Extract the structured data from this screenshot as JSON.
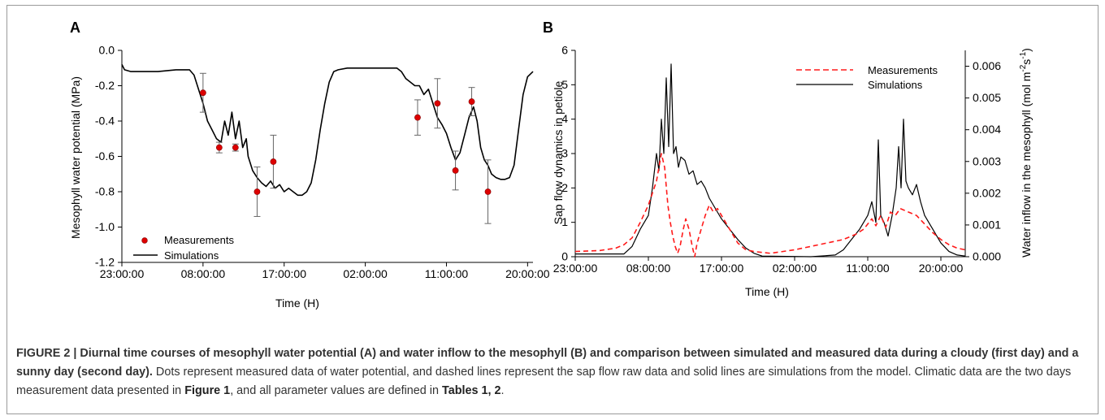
{
  "chart_data": [
    {
      "type": "scatter+line",
      "panel": "A",
      "xlabel": "Time (H)",
      "ylabel": "Mesophyll water potential (MPa)",
      "xlim": [
        23,
        68.6
      ],
      "ylim": [
        -1.2,
        0.0
      ],
      "xticks": [
        23,
        32,
        41,
        50,
        59,
        68
      ],
      "xtick_labels": [
        "23:00:00",
        "08:00:00",
        "17:00:00",
        "02:00:00",
        "11:00:00",
        "20:00:00"
      ],
      "yticks": [
        0.0,
        -0.2,
        -0.4,
        -0.6,
        -0.8,
        -1.0,
        -1.2
      ],
      "ytick_labels": [
        "0.0",
        "-0.2",
        "-0.4",
        "-0.6",
        "-0.8",
        "-1.0",
        "-1.2"
      ],
      "legend_position": "bottom-left",
      "series": [
        {
          "name": "Measurements",
          "kind": "points",
          "color": "#dd0000",
          "points": [
            {
              "x": 32.0,
              "y": -0.24,
              "err": 0.11
            },
            {
              "x": 33.8,
              "y": -0.55,
              "err": 0.03
            },
            {
              "x": 35.6,
              "y": -0.55,
              "err": 0.02
            },
            {
              "x": 38.0,
              "y": -0.8,
              "err": 0.14
            },
            {
              "x": 39.8,
              "y": -0.63,
              "err": 0.15
            },
            {
              "x": 55.8,
              "y": -0.38,
              "err": 0.1
            },
            {
              "x": 58.0,
              "y": -0.3,
              "err": 0.14
            },
            {
              "x": 60.0,
              "y": -0.68,
              "err": 0.11
            },
            {
              "x": 61.8,
              "y": -0.29,
              "err": 0.08
            },
            {
              "x": 63.6,
              "y": -0.8,
              "err": 0.18
            }
          ]
        },
        {
          "name": "Simulations",
          "kind": "line",
          "color": "#000000",
          "points": [
            [
              23.0,
              -0.08
            ],
            [
              23.3,
              -0.11
            ],
            [
              24.0,
              -0.12
            ],
            [
              27.0,
              -0.12
            ],
            [
              29.0,
              -0.11
            ],
            [
              30.5,
              -0.11
            ],
            [
              31.0,
              -0.14
            ],
            [
              31.5,
              -0.22
            ],
            [
              32.0,
              -0.3
            ],
            [
              32.5,
              -0.4
            ],
            [
              33.0,
              -0.45
            ],
            [
              33.5,
              -0.5
            ],
            [
              34.0,
              -0.52
            ],
            [
              34.4,
              -0.4
            ],
            [
              34.8,
              -0.48
            ],
            [
              35.2,
              -0.35
            ],
            [
              35.6,
              -0.5
            ],
            [
              36.0,
              -0.4
            ],
            [
              36.4,
              -0.55
            ],
            [
              36.8,
              -0.5
            ],
            [
              37.0,
              -0.6
            ],
            [
              37.5,
              -0.68
            ],
            [
              38.0,
              -0.72
            ],
            [
              38.5,
              -0.75
            ],
            [
              39.0,
              -0.77
            ],
            [
              39.5,
              -0.74
            ],
            [
              40.0,
              -0.78
            ],
            [
              40.5,
              -0.76
            ],
            [
              41.0,
              -0.8
            ],
            [
              41.5,
              -0.78
            ],
            [
              42.0,
              -0.8
            ],
            [
              42.5,
              -0.82
            ],
            [
              43.0,
              -0.82
            ],
            [
              43.5,
              -0.8
            ],
            [
              44.0,
              -0.75
            ],
            [
              44.5,
              -0.62
            ],
            [
              45.0,
              -0.45
            ],
            [
              45.5,
              -0.3
            ],
            [
              46.0,
              -0.18
            ],
            [
              46.5,
              -0.12
            ],
            [
              47.0,
              -0.11
            ],
            [
              48.0,
              -0.1
            ],
            [
              50.0,
              -0.1
            ],
            [
              52.0,
              -0.1
            ],
            [
              53.5,
              -0.1
            ],
            [
              54.0,
              -0.12
            ],
            [
              54.5,
              -0.16
            ],
            [
              55.0,
              -0.18
            ],
            [
              55.5,
              -0.2
            ],
            [
              56.0,
              -0.2
            ],
            [
              56.5,
              -0.25
            ],
            [
              57.0,
              -0.22
            ],
            [
              57.5,
              -0.3
            ],
            [
              58.0,
              -0.38
            ],
            [
              58.5,
              -0.42
            ],
            [
              59.0,
              -0.47
            ],
            [
              59.5,
              -0.55
            ],
            [
              60.0,
              -0.62
            ],
            [
              60.5,
              -0.58
            ],
            [
              61.0,
              -0.48
            ],
            [
              61.5,
              -0.38
            ],
            [
              62.0,
              -0.32
            ],
            [
              62.4,
              -0.4
            ],
            [
              62.8,
              -0.55
            ],
            [
              63.2,
              -0.62
            ],
            [
              63.6,
              -0.65
            ],
            [
              64.0,
              -0.7
            ],
            [
              64.5,
              -0.72
            ],
            [
              65.0,
              -0.73
            ],
            [
              65.5,
              -0.73
            ],
            [
              66.0,
              -0.72
            ],
            [
              66.5,
              -0.65
            ],
            [
              67.0,
              -0.45
            ],
            [
              67.5,
              -0.25
            ],
            [
              68.0,
              -0.15
            ],
            [
              68.6,
              -0.12
            ]
          ]
        }
      ]
    },
    {
      "type": "line",
      "panel": "B",
      "xlabel": "Time (H)",
      "ylabel": "Sap flow dynamics in petiole",
      "y2label": "Water inflow in the mesophyll (mol m⁻²s⁻¹)",
      "xlim": [
        23,
        71
      ],
      "ylim": [
        0,
        6
      ],
      "y2lim": [
        0,
        0.0065
      ],
      "xticks": [
        23,
        32,
        41,
        50,
        59,
        68
      ],
      "xtick_labels": [
        "23:00:00",
        "08:00:00",
        "17:00:00",
        "02:00:00",
        "11:00:00",
        "20:00:00"
      ],
      "yticks": [
        0,
        1,
        2,
        3,
        4,
        5,
        6
      ],
      "ytick_labels": [
        "0",
        "1",
        "2",
        "3",
        "4",
        "5",
        "6"
      ],
      "y2ticks": [
        0,
        0.001,
        0.002,
        0.003,
        0.004,
        0.005,
        0.006
      ],
      "y2tick_labels": [
        "0.000",
        "0.001",
        "0.002",
        "0.003",
        "0.004",
        "0.005",
        "0.006"
      ],
      "legend_position": "top-right",
      "series": [
        {
          "name": "Measurements",
          "kind": "dashed-line",
          "color": "#ff1a1a",
          "points": [
            [
              23.0,
              0.15
            ],
            [
              26.0,
              0.18
            ],
            [
              28.0,
              0.25
            ],
            [
              29.0,
              0.35
            ],
            [
              30.0,
              0.55
            ],
            [
              31.0,
              1.0
            ],
            [
              32.0,
              1.5
            ],
            [
              33.0,
              2.2
            ],
            [
              33.6,
              3.0
            ],
            [
              34.0,
              2.6
            ],
            [
              34.4,
              1.5
            ],
            [
              34.7,
              1.0
            ],
            [
              35.0,
              0.6
            ],
            [
              35.3,
              0.3
            ],
            [
              35.6,
              0.1
            ],
            [
              35.9,
              0.3
            ],
            [
              36.3,
              0.8
            ],
            [
              36.6,
              1.1
            ],
            [
              37.0,
              0.8
            ],
            [
              37.4,
              0.3
            ],
            [
              37.7,
              0.0
            ],
            [
              38.0,
              0.4
            ],
            [
              38.5,
              0.8
            ],
            [
              39.0,
              1.2
            ],
            [
              39.5,
              1.5
            ],
            [
              40.0,
              1.3
            ],
            [
              40.5,
              1.4
            ],
            [
              41.0,
              1.2
            ],
            [
              41.5,
              1.0
            ],
            [
              42.0,
              0.8
            ],
            [
              43.0,
              0.4
            ],
            [
              44.0,
              0.2
            ],
            [
              45.0,
              0.15
            ],
            [
              47.0,
              0.1
            ],
            [
              50.0,
              0.2
            ],
            [
              53.0,
              0.35
            ],
            [
              56.0,
              0.5
            ],
            [
              57.5,
              0.65
            ],
            [
              58.5,
              0.8
            ],
            [
              59.5,
              1.1
            ],
            [
              60.0,
              0.9
            ],
            [
              60.6,
              1.2
            ],
            [
              61.2,
              0.85
            ],
            [
              61.8,
              1.3
            ],
            [
              62.4,
              1.2
            ],
            [
              63.0,
              1.4
            ],
            [
              64.0,
              1.3
            ],
            [
              65.0,
              1.2
            ],
            [
              66.0,
              0.95
            ],
            [
              67.0,
              0.7
            ],
            [
              68.0,
              0.5
            ],
            [
              69.0,
              0.35
            ],
            [
              70.0,
              0.25
            ],
            [
              71.0,
              0.2
            ]
          ]
        },
        {
          "name": "Simulations",
          "kind": "line",
          "color": "#000000",
          "points": [
            [
              23.0,
              0.08
            ],
            [
              29.0,
              0.08
            ],
            [
              30.0,
              0.3
            ],
            [
              31.0,
              0.8
            ],
            [
              32.0,
              1.2
            ],
            [
              32.5,
              2.0
            ],
            [
              33.0,
              3.0
            ],
            [
              33.3,
              2.5
            ],
            [
              33.6,
              4.0
            ],
            [
              33.9,
              3.0
            ],
            [
              34.2,
              5.2
            ],
            [
              34.5,
              3.2
            ],
            [
              34.8,
              5.6
            ],
            [
              35.1,
              3.0
            ],
            [
              35.4,
              3.2
            ],
            [
              35.7,
              2.6
            ],
            [
              36.0,
              2.9
            ],
            [
              36.5,
              2.8
            ],
            [
              37.0,
              2.4
            ],
            [
              37.5,
              2.5
            ],
            [
              38.0,
              2.1
            ],
            [
              38.5,
              2.2
            ],
            [
              39.0,
              2.0
            ],
            [
              39.5,
              1.7
            ],
            [
              40.0,
              1.5
            ],
            [
              40.5,
              1.3
            ],
            [
              41.0,
              1.1
            ],
            [
              42.0,
              0.8
            ],
            [
              43.0,
              0.5
            ],
            [
              44.0,
              0.25
            ],
            [
              45.0,
              0.1
            ],
            [
              46.0,
              0.02
            ],
            [
              52.0,
              0.0
            ],
            [
              55.0,
              0.05
            ],
            [
              56.0,
              0.2
            ],
            [
              57.0,
              0.5
            ],
            [
              58.0,
              0.8
            ],
            [
              59.0,
              1.2
            ],
            [
              59.5,
              1.6
            ],
            [
              60.0,
              1.0
            ],
            [
              60.3,
              3.4
            ],
            [
              60.6,
              1.2
            ],
            [
              61.0,
              1.0
            ],
            [
              61.5,
              0.6
            ],
            [
              62.0,
              1.2
            ],
            [
              62.5,
              2.0
            ],
            [
              62.8,
              3.2
            ],
            [
              63.1,
              2.0
            ],
            [
              63.4,
              4.0
            ],
            [
              63.7,
              2.2
            ],
            [
              64.0,
              2.0
            ],
            [
              64.5,
              1.8
            ],
            [
              65.0,
              2.1
            ],
            [
              65.5,
              1.6
            ],
            [
              66.0,
              1.2
            ],
            [
              67.0,
              0.8
            ],
            [
              68.0,
              0.4
            ],
            [
              69.0,
              0.15
            ],
            [
              70.0,
              0.05
            ],
            [
              71.0,
              0.02
            ]
          ]
        }
      ]
    }
  ],
  "panel_labels": {
    "a": "A",
    "b": "B"
  },
  "caption": {
    "prefix": "FIGURE 2 | Diurnal time courses of mesophyll water potential (A) and water inflow to the mesophyll (B) and comparison between simulated and measured data during a cloudy (first day) and a sunny day (second day).",
    "body1": " Dots represent measured data of water potential, and dashed lines represent the sap flow raw data and solid lines are simulations from the model. Climatic data are the two days measurement data presented in ",
    "fig_ref": "Figure 1",
    "body2": ", and all parameter values are defined in ",
    "tables_ref": "Tables 1, 2",
    "end": "."
  }
}
